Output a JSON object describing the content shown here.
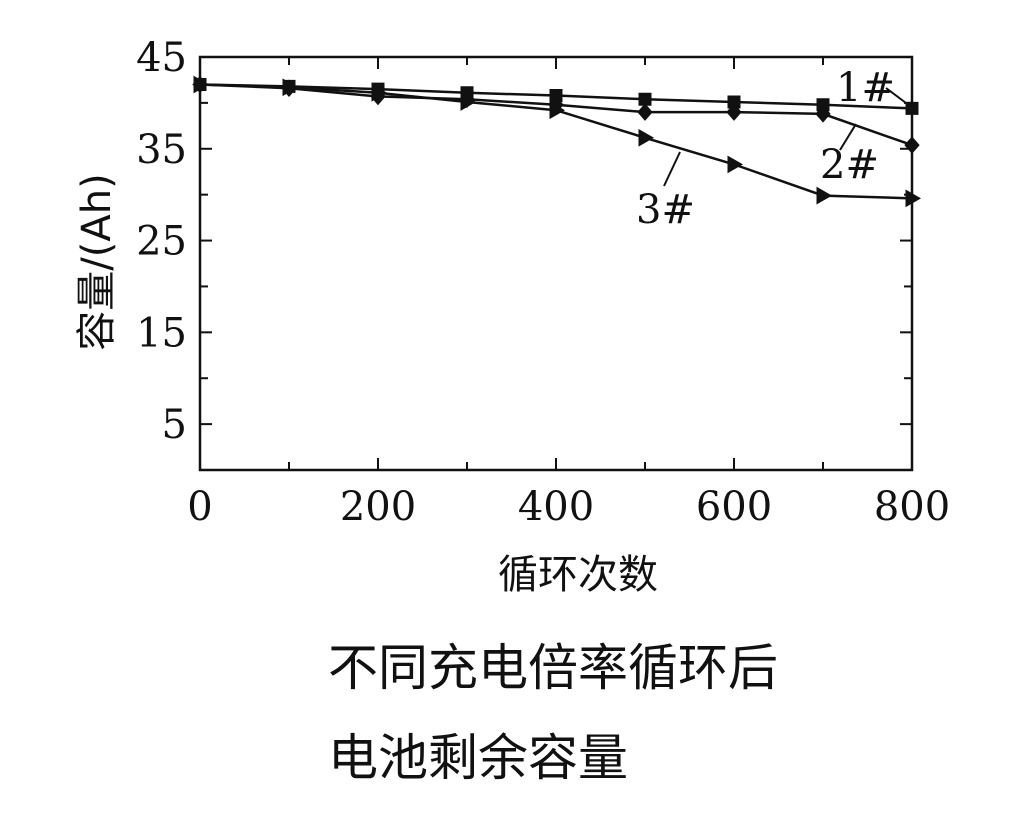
{
  "chart_data": {
    "type": "line",
    "xlabel": "循环次数",
    "ylabel": "容量/(Ah)",
    "xlim": [
      0,
      800
    ],
    "ylim": [
      0,
      45
    ],
    "xticks": [
      0,
      200,
      400,
      600,
      800
    ],
    "yticks": [
      5,
      15,
      25,
      35,
      45
    ],
    "grid": false,
    "x": [
      0,
      100,
      200,
      300,
      400,
      500,
      600,
      700,
      800
    ],
    "series": [
      {
        "name": "1#",
        "marker": "square",
        "values": [
          42,
          41.8,
          41.5,
          41.1,
          40.8,
          40.4,
          40.1,
          39.8,
          39.4
        ]
      },
      {
        "name": "2#",
        "marker": "diamond",
        "values": [
          42,
          41.6,
          40.7,
          40.4,
          39.8,
          39,
          39,
          38.8,
          35.4
        ]
      },
      {
        "name": "3#",
        "marker": "triangle-right",
        "values": [
          42,
          41.7,
          41.1,
          40.1,
          39.2,
          36.2,
          33.3,
          29.9,
          29.6
        ]
      }
    ]
  },
  "caption": {
    "line1": "不同充电倍率循环后",
    "line2": "电池剩余容量"
  }
}
